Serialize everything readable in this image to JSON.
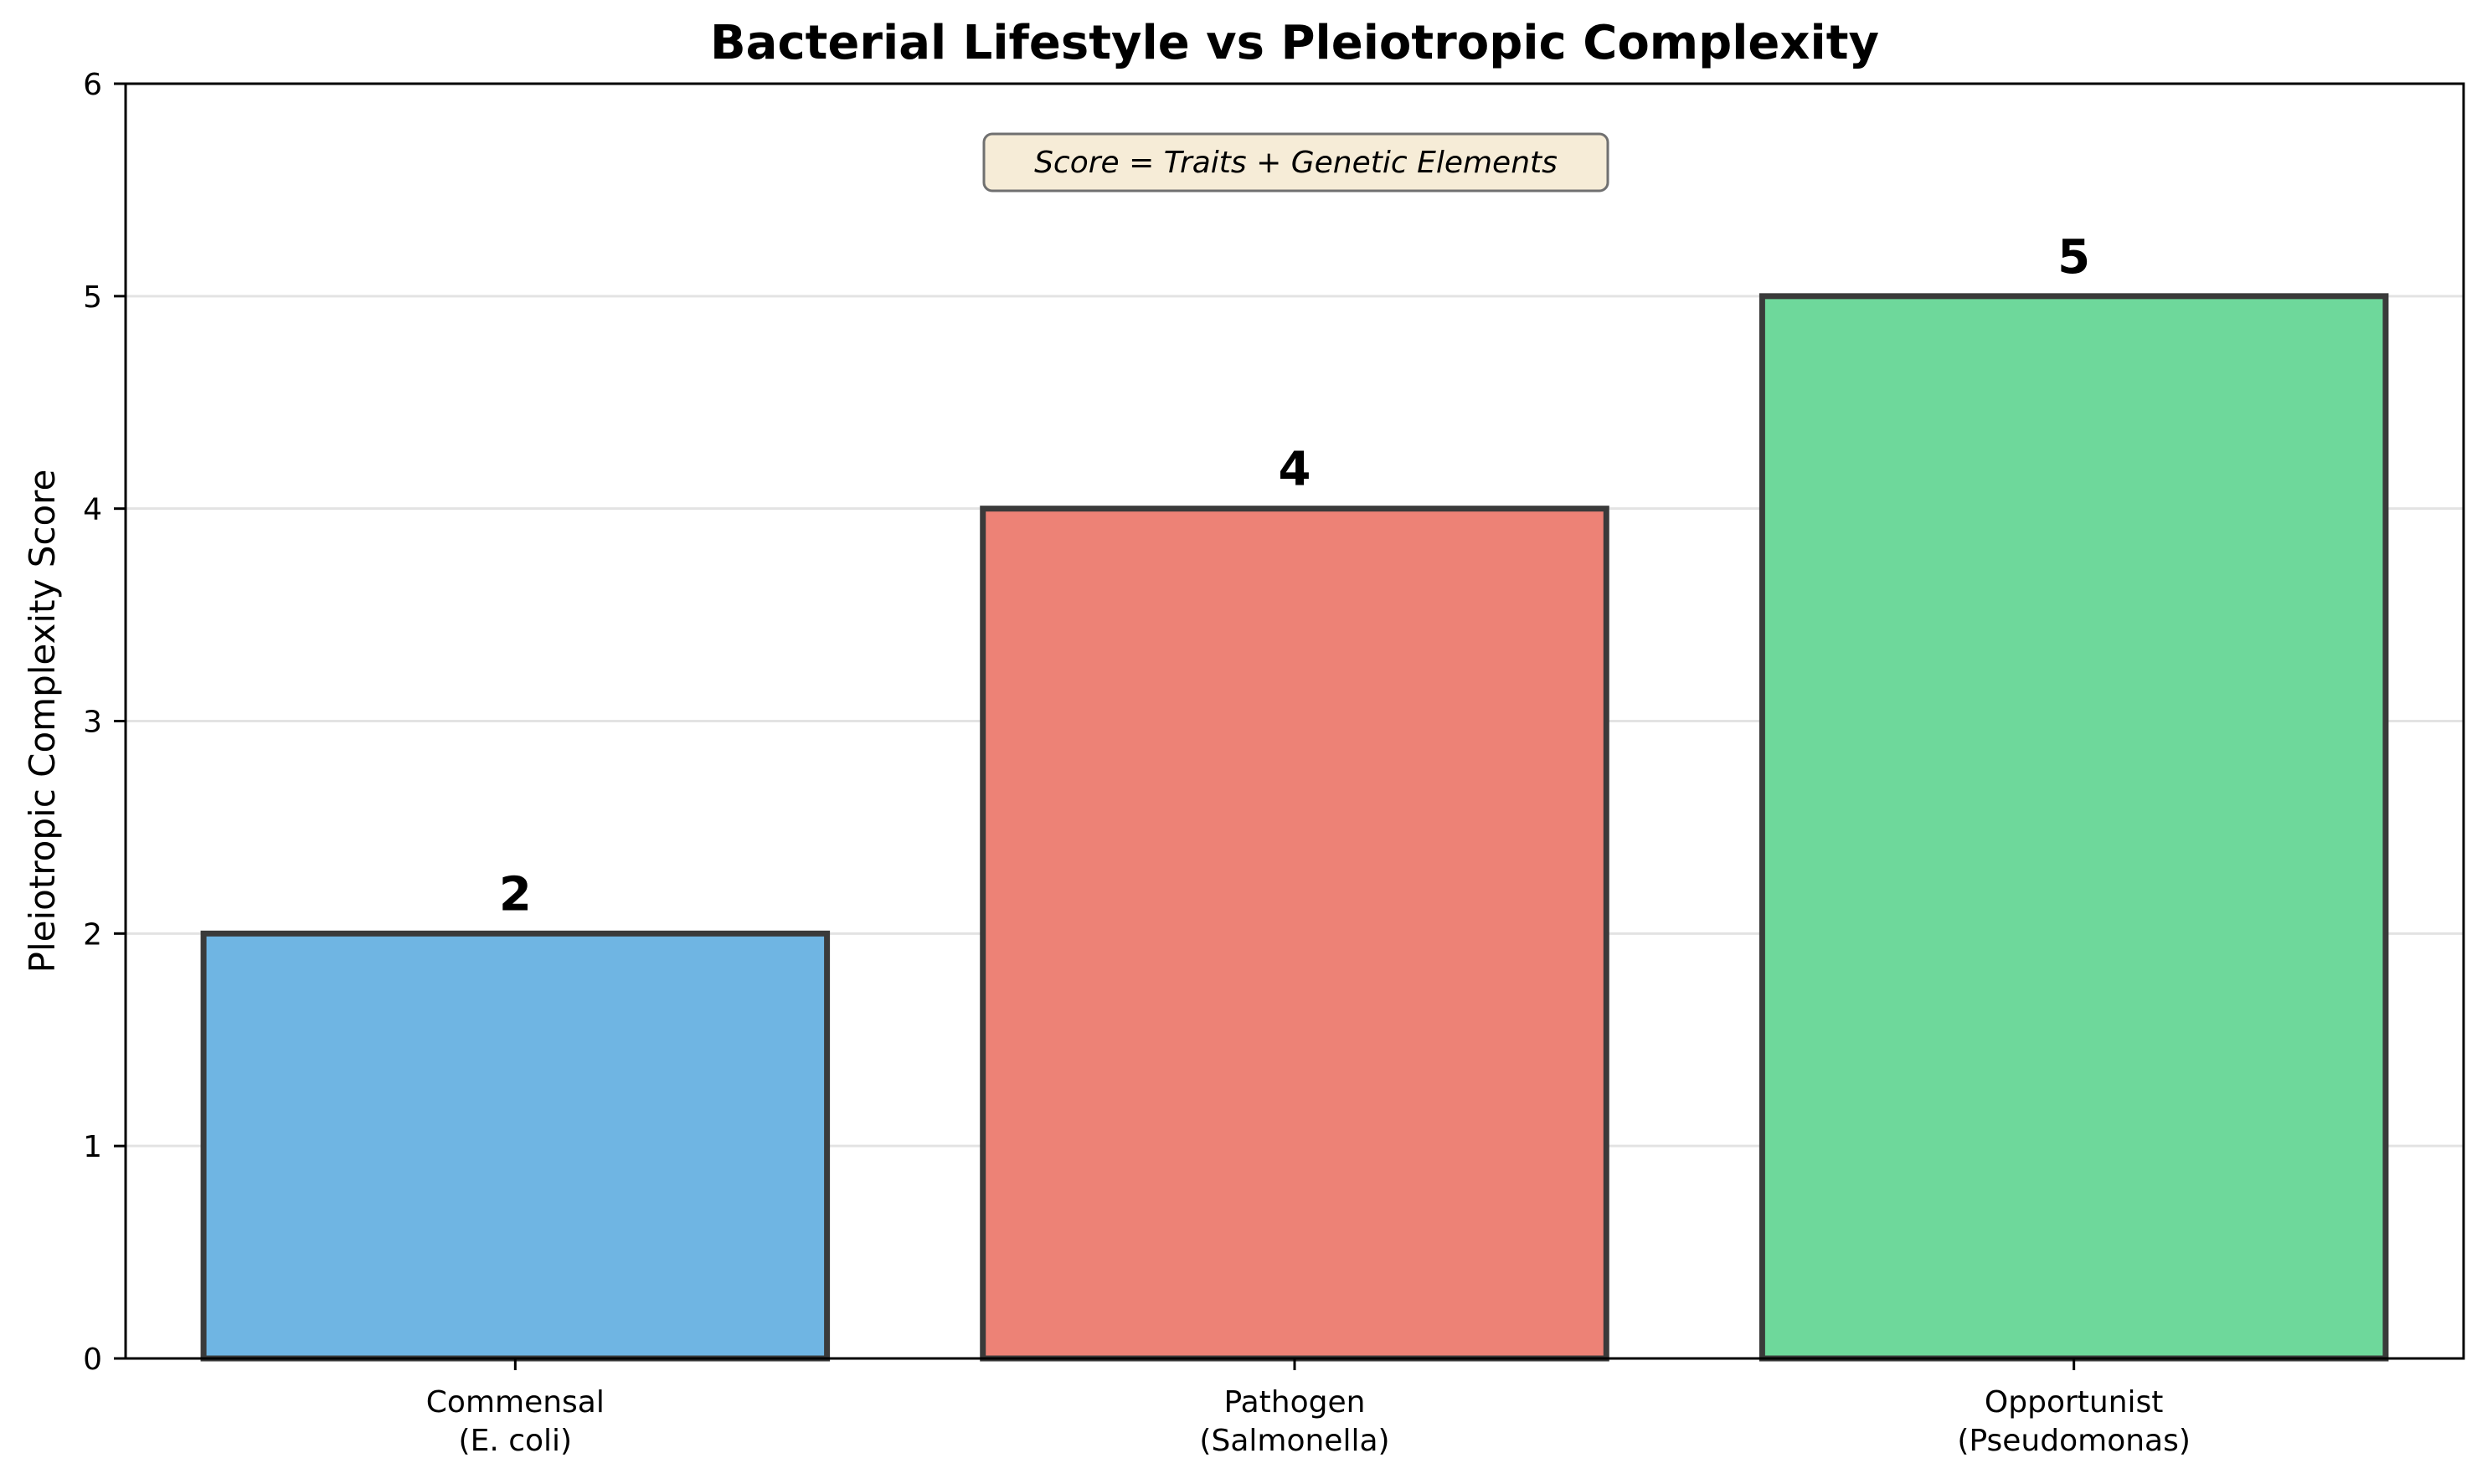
{
  "chart_data": {
    "type": "bar",
    "title": "Bacterial Lifestyle vs Pleiotropic Complexity",
    "xlabel": "",
    "ylabel": "Pleiotropic Complexity Score",
    "ylim": [
      0,
      6
    ],
    "yticks": [
      0,
      1,
      2,
      3,
      4,
      5,
      6
    ],
    "grid": "y-axis horizontal lines",
    "categories": [
      [
        "Commensal",
        "(E. coli)"
      ],
      [
        "Pathogen",
        "(Salmonella)"
      ],
      [
        "Opportunist",
        "(Pseudomonas)"
      ]
    ],
    "values": [
      2,
      4,
      5
    ],
    "bar_colors": [
      "#6fb5e3",
      "#ed8276",
      "#6ed89b"
    ],
    "edge_color": "#3a3a3a",
    "annotation": "Score = Traits + Genetic Elements",
    "annotation_style": {
      "fill": "#f6ecd7",
      "stroke": "#707070"
    }
  }
}
